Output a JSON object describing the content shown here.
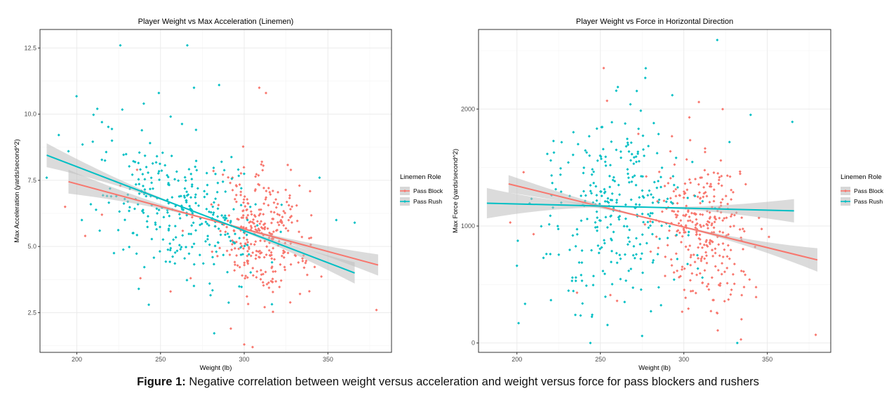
{
  "caption": {
    "label": "Figure 1:",
    "text": "Negative correlation between weight versus acceleration and weight versus force for pass blockers and rushers"
  },
  "colors": {
    "pass_block": "#F8766D",
    "pass_rush": "#00BFC4",
    "band": "#bdbdbd",
    "grid": "#ebebeb"
  },
  "chart_data": [
    {
      "type": "scatter",
      "title": "Player Weight vs Max Acceleration (Linemen)",
      "xlabel": "Weight (lb)",
      "ylabel": "Max Acceleration (yards/second^2)",
      "xlim": [
        178,
        388
      ],
      "ylim": [
        1.0,
        13.2
      ],
      "x_ticks": [
        200,
        250,
        300,
        350
      ],
      "y_ticks": [
        2.5,
        5.0,
        7.5,
        10.0,
        12.5
      ],
      "y_tick_labels": [
        "2.5",
        "5.0",
        "7.5",
        "10.0",
        "12.5"
      ],
      "grid": true,
      "legend": {
        "title": "Linemen Role",
        "position": "right",
        "entries": [
          "Pass Block",
          "Pass Rush"
        ]
      },
      "series": [
        {
          "name": "Pass Block",
          "trend": {
            "x": [
              195,
              380
            ],
            "y": [
              7.45,
              4.3
            ]
          },
          "band": {
            "lo_ends": [
              7.0,
              3.9
            ],
            "hi_ends": [
              7.9,
              4.7
            ],
            "x_min": 0.045
          },
          "point_count": 300,
          "x_mean": 310,
          "x_sd": 14,
          "y_sd": 1.1,
          "extra_points": [
            [
              193,
              6.5
            ],
            [
              205,
              5.4
            ],
            [
              215,
              6.2
            ],
            [
              226,
              7.3
            ],
            [
              238,
              3.8
            ],
            [
              256,
              3.3
            ],
            [
              268,
              3.8
            ],
            [
              292,
              1.9
            ],
            [
              300,
              1.3
            ],
            [
              305,
              1.2
            ],
            [
              309,
              11.0
            ],
            [
              313,
              10.8
            ],
            [
              379,
              2.6
            ],
            [
              333,
              7.3
            ],
            [
              236,
              7.9
            ]
          ]
        },
        {
          "name": "Pass Rush",
          "trend": {
            "x": [
              182,
              366
            ],
            "y": [
              8.45,
              4.0
            ]
          },
          "band": {
            "lo_ends": [
              8.0,
              3.6
            ],
            "hi_ends": [
              8.9,
              4.4
            ],
            "x_min": 0.03
          },
          "point_count": 300,
          "x_mean": 262,
          "x_sd": 24,
          "y_sd": 1.3,
          "extra_points": [
            [
              182,
              7.6
            ],
            [
              195,
              8.6
            ],
            [
              203,
              6.0
            ],
            [
              215,
              9.7
            ],
            [
              226,
              12.6
            ],
            [
              266,
              12.6
            ],
            [
              249,
              10.8
            ],
            [
              285,
              11.1
            ],
            [
              270,
              11.0
            ],
            [
              240,
              10.4
            ],
            [
              221,
              9.0
            ],
            [
              345,
              7.6
            ],
            [
              355,
              6.0
            ],
            [
              366,
              5.9
            ],
            [
              237,
              3.4
            ],
            [
              243,
              2.8
            ]
          ]
        }
      ]
    },
    {
      "type": "scatter",
      "title": "Player Weight vs Force in Horizontal Direction",
      "xlabel": "Weight (lb)",
      "ylabel": "Max Force (yards/second^2)",
      "xlim": [
        177,
        388
      ],
      "ylim": [
        -80,
        2680
      ],
      "x_ticks": [
        200,
        250,
        300,
        350
      ],
      "y_ticks": [
        0,
        1000,
        2000
      ],
      "y_tick_labels": [
        "0",
        "1000",
        "2000"
      ],
      "grid": true,
      "legend": {
        "title": "Linemen Role",
        "position": "right",
        "entries": [
          "Pass Block",
          "Pass Rush"
        ]
      },
      "series": [
        {
          "name": "Pass Block",
          "trend": {
            "x": [
              195,
              380
            ],
            "y": [
              1360,
              710
            ]
          },
          "band": {
            "lo_ends": [
              1290,
              610
            ],
            "hi_ends": [
              1440,
              810
            ],
            "x_min": 0.045
          },
          "point_count": 300,
          "x_mean": 310,
          "x_sd": 14,
          "y_sd": 310,
          "extra_points": [
            [
              196,
              1030
            ],
            [
              204,
              1460
            ],
            [
              210,
              930
            ],
            [
              236,
              430
            ],
            [
              252,
              2350
            ],
            [
              254,
              2070
            ],
            [
              256,
              410
            ],
            [
              260,
              360
            ],
            [
              379,
              70
            ],
            [
              304,
              1370
            ],
            [
              309,
              2060
            ],
            [
              330,
              1000
            ],
            [
              345,
              1070
            ]
          ]
        },
        {
          "name": "Pass Rush",
          "trend": {
            "x": [
              182,
              366
            ],
            "y": [
              1195,
              1130
            ]
          },
          "band": {
            "lo_ends": [
              1070,
              1030
            ],
            "hi_ends": [
              1330,
              1230
            ],
            "x_min": 0.03
          },
          "point_count": 300,
          "x_mean": 262,
          "x_sd": 24,
          "y_sd": 380,
          "extra_points": [
            [
              200,
              660
            ],
            [
              201,
              170
            ],
            [
              220,
              760
            ],
            [
              235,
              240
            ],
            [
              244,
              0
            ],
            [
              268,
              2040
            ],
            [
              320,
              2590
            ],
            [
              365,
              1890
            ],
            [
              340,
              1950
            ],
            [
              332,
              0
            ],
            [
              275,
              60
            ],
            [
              282,
              1880
            ]
          ]
        }
      ]
    }
  ]
}
